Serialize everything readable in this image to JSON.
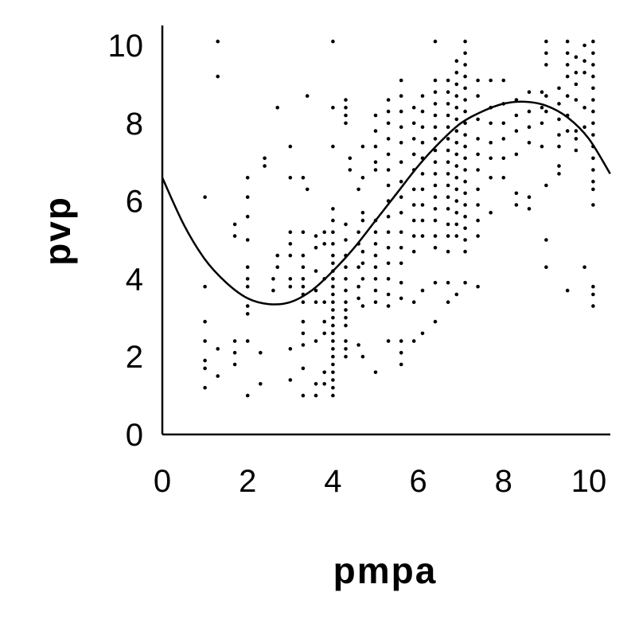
{
  "chart_data": {
    "type": "scatter",
    "xlabel": "pmpa",
    "ylabel": "pvp",
    "xlim": [
      0,
      10.5
    ],
    "ylim": [
      0,
      10.5
    ],
    "x_ticks": [
      "0",
      "2",
      "4",
      "6",
      "8",
      "10"
    ],
    "y_ticks": [
      "0",
      "2",
      "4",
      "6",
      "8",
      "10"
    ],
    "grid": false,
    "legend": "none",
    "point_color": "#000000",
    "points": [
      [
        1.0,
        6.1
      ],
      [
        1.0,
        3.8
      ],
      [
        1.0,
        2.9
      ],
      [
        1.0,
        2.4
      ],
      [
        1.0,
        1.9
      ],
      [
        1.0,
        1.7
      ],
      [
        1.0,
        1.2
      ],
      [
        1.3,
        10.1
      ],
      [
        1.3,
        9.2
      ],
      [
        1.3,
        2.2
      ],
      [
        1.3,
        1.5
      ],
      [
        1.7,
        5.4
      ],
      [
        1.7,
        5.1
      ],
      [
        1.7,
        2.4
      ],
      [
        1.7,
        2.1
      ],
      [
        1.7,
        1.8
      ],
      [
        2.0,
        6.6
      ],
      [
        2.0,
        6.1
      ],
      [
        2.0,
        5.6
      ],
      [
        2.0,
        5.0
      ],
      [
        2.0,
        4.3
      ],
      [
        2.0,
        4.0
      ],
      [
        2.0,
        3.8
      ],
      [
        2.0,
        3.3
      ],
      [
        2.0,
        3.1
      ],
      [
        2.0,
        2.4
      ],
      [
        2.0,
        1.0
      ],
      [
        2.3,
        2.1
      ],
      [
        2.3,
        1.3
      ],
      [
        2.4,
        7.1
      ],
      [
        2.4,
        6.9
      ],
      [
        2.6,
        4.0
      ],
      [
        2.6,
        3.7
      ],
      [
        2.7,
        8.4
      ],
      [
        2.7,
        4.6
      ],
      [
        2.7,
        4.3
      ],
      [
        3.0,
        7.4
      ],
      [
        3.0,
        6.6
      ],
      [
        3.0,
        5.2
      ],
      [
        3.0,
        4.9
      ],
      [
        3.0,
        4.6
      ],
      [
        3.0,
        4.0
      ],
      [
        3.0,
        3.8
      ],
      [
        3.0,
        2.2
      ],
      [
        3.0,
        1.4
      ],
      [
        3.3,
        6.6
      ],
      [
        3.3,
        5.2
      ],
      [
        3.3,
        4.6
      ],
      [
        3.3,
        4.3
      ],
      [
        3.3,
        4.0
      ],
      [
        3.3,
        3.8
      ],
      [
        3.3,
        3.6
      ],
      [
        3.3,
        3.4
      ],
      [
        3.3,
        2.9
      ],
      [
        3.3,
        2.6
      ],
      [
        3.3,
        2.3
      ],
      [
        3.3,
        1.7
      ],
      [
        3.3,
        1.0
      ],
      [
        3.4,
        8.7
      ],
      [
        3.4,
        6.3
      ],
      [
        3.6,
        5.1
      ],
      [
        3.6,
        4.8
      ],
      [
        3.6,
        4.2
      ],
      [
        3.6,
        3.7
      ],
      [
        3.6,
        3.4
      ],
      [
        3.6,
        2.4
      ],
      [
        3.6,
        1.3
      ],
      [
        3.6,
        1.0
      ],
      [
        3.8,
        5.2
      ],
      [
        3.8,
        4.9
      ],
      [
        3.8,
        4.0
      ],
      [
        3.8,
        3.4
      ],
      [
        3.8,
        2.9
      ],
      [
        3.8,
        2.6
      ],
      [
        3.8,
        1.6
      ],
      [
        3.8,
        1.3
      ],
      [
        4.0,
        10.1
      ],
      [
        4.0,
        8.4
      ],
      [
        4.0,
        7.4
      ],
      [
        4.0,
        5.8
      ],
      [
        4.0,
        5.5
      ],
      [
        4.0,
        5.2
      ],
      [
        4.0,
        4.9
      ],
      [
        4.0,
        4.6
      ],
      [
        4.0,
        4.4
      ],
      [
        4.0,
        4.2
      ],
      [
        4.0,
        4.0
      ],
      [
        4.0,
        3.8
      ],
      [
        4.0,
        3.6
      ],
      [
        4.0,
        3.4
      ],
      [
        4.0,
        3.2
      ],
      [
        4.0,
        3.0
      ],
      [
        4.0,
        2.8
      ],
      [
        4.0,
        2.6
      ],
      [
        4.0,
        2.4
      ],
      [
        4.0,
        2.2
      ],
      [
        4.0,
        2.0
      ],
      [
        4.0,
        1.8
      ],
      [
        4.0,
        1.6
      ],
      [
        4.0,
        1.4
      ],
      [
        4.0,
        1.2
      ],
      [
        4.0,
        1.0
      ],
      [
        4.3,
        8.6
      ],
      [
        4.3,
        8.4
      ],
      [
        4.3,
        8.2
      ],
      [
        4.3,
        8.0
      ],
      [
        4.3,
        5.4
      ],
      [
        4.3,
        5.0
      ],
      [
        4.3,
        4.6
      ],
      [
        4.3,
        4.3
      ],
      [
        4.3,
        4.0
      ],
      [
        4.3,
        3.7
      ],
      [
        4.3,
        3.4
      ],
      [
        4.3,
        3.2
      ],
      [
        4.3,
        3.0
      ],
      [
        4.3,
        2.8
      ],
      [
        4.3,
        2.4
      ],
      [
        4.3,
        2.2
      ],
      [
        4.3,
        2.0
      ],
      [
        4.4,
        7.1
      ],
      [
        4.4,
        6.8
      ],
      [
        4.6,
        6.3
      ],
      [
        4.6,
        5.2
      ],
      [
        4.6,
        4.9
      ],
      [
        4.6,
        4.3
      ],
      [
        4.6,
        3.8
      ],
      [
        4.6,
        3.5
      ],
      [
        4.6,
        2.3
      ],
      [
        4.7,
        7.4
      ],
      [
        4.7,
        6.6
      ],
      [
        4.7,
        5.7
      ],
      [
        4.7,
        5.5
      ],
      [
        4.7,
        4.7
      ],
      [
        4.7,
        4.4
      ],
      [
        4.7,
        4.0
      ],
      [
        4.7,
        3.3
      ],
      [
        4.7,
        2.0
      ],
      [
        5.0,
        8.2
      ],
      [
        5.0,
        7.8
      ],
      [
        5.0,
        7.4
      ],
      [
        5.0,
        7.0
      ],
      [
        5.0,
        6.8
      ],
      [
        5.0,
        5.5
      ],
      [
        5.0,
        5.2
      ],
      [
        5.0,
        4.9
      ],
      [
        5.0,
        4.6
      ],
      [
        5.0,
        4.3
      ],
      [
        5.0,
        4.0
      ],
      [
        5.0,
        3.7
      ],
      [
        5.0,
        3.4
      ],
      [
        5.0,
        1.6
      ],
      [
        5.3,
        8.6
      ],
      [
        5.3,
        8.3
      ],
      [
        5.3,
        8.0
      ],
      [
        5.3,
        7.6
      ],
      [
        5.3,
        7.2
      ],
      [
        5.3,
        6.8
      ],
      [
        5.3,
        6.4
      ],
      [
        5.3,
        6.0
      ],
      [
        5.3,
        5.6
      ],
      [
        5.3,
        5.2
      ],
      [
        5.3,
        4.8
      ],
      [
        5.3,
        4.4
      ],
      [
        5.3,
        4.0
      ],
      [
        5.3,
        3.6
      ],
      [
        5.3,
        3.3
      ],
      [
        5.3,
        2.4
      ],
      [
        5.6,
        9.1
      ],
      [
        5.6,
        8.7
      ],
      [
        5.6,
        8.3
      ],
      [
        5.6,
        7.9
      ],
      [
        5.6,
        7.5
      ],
      [
        5.6,
        7.0
      ],
      [
        5.6,
        6.5
      ],
      [
        5.6,
        6.1
      ],
      [
        5.6,
        5.7
      ],
      [
        5.6,
        5.2
      ],
      [
        5.6,
        4.8
      ],
      [
        5.6,
        4.4
      ],
      [
        5.6,
        3.9
      ],
      [
        5.6,
        3.5
      ],
      [
        5.6,
        2.4
      ],
      [
        5.6,
        2.1
      ],
      [
        5.6,
        1.8
      ],
      [
        5.9,
        8.4
      ],
      [
        5.9,
        8.0
      ],
      [
        5.9,
        7.6
      ],
      [
        5.9,
        7.2
      ],
      [
        5.9,
        6.8
      ],
      [
        5.9,
        6.3
      ],
      [
        5.9,
        5.9
      ],
      [
        5.9,
        5.5
      ],
      [
        5.9,
        5.1
      ],
      [
        5.9,
        4.7
      ],
      [
        5.9,
        3.4
      ],
      [
        5.9,
        2.4
      ],
      [
        6.1,
        8.7
      ],
      [
        6.1,
        8.3
      ],
      [
        6.1,
        7.9
      ],
      [
        6.1,
        7.5
      ],
      [
        6.1,
        7.1
      ],
      [
        6.1,
        6.7
      ],
      [
        6.1,
        6.3
      ],
      [
        6.1,
        5.9
      ],
      [
        6.1,
        5.5
      ],
      [
        6.1,
        5.1
      ],
      [
        6.1,
        3.7
      ],
      [
        6.1,
        2.6
      ],
      [
        6.4,
        10.1
      ],
      [
        6.4,
        9.1
      ],
      [
        6.4,
        8.8
      ],
      [
        6.4,
        8.5
      ],
      [
        6.4,
        8.2
      ],
      [
        6.4,
        7.9
      ],
      [
        6.4,
        7.6
      ],
      [
        6.4,
        7.3
      ],
      [
        6.4,
        7.0
      ],
      [
        6.4,
        6.7
      ],
      [
        6.4,
        6.4
      ],
      [
        6.4,
        6.1
      ],
      [
        6.4,
        5.8
      ],
      [
        6.4,
        5.5
      ],
      [
        6.4,
        5.1
      ],
      [
        6.4,
        4.8
      ],
      [
        6.4,
        3.9
      ],
      [
        6.4,
        2.9
      ],
      [
        6.7,
        9.1
      ],
      [
        6.7,
        8.8
      ],
      [
        6.7,
        8.5
      ],
      [
        6.7,
        8.2
      ],
      [
        6.7,
        7.9
      ],
      [
        6.7,
        7.6
      ],
      [
        6.7,
        7.3
      ],
      [
        6.7,
        7.0
      ],
      [
        6.7,
        6.7
      ],
      [
        6.7,
        6.4
      ],
      [
        6.7,
        6.1
      ],
      [
        6.7,
        5.8
      ],
      [
        6.7,
        5.4
      ],
      [
        6.7,
        5.1
      ],
      [
        6.7,
        4.7
      ],
      [
        6.7,
        3.9
      ],
      [
        6.7,
        3.4
      ],
      [
        6.9,
        9.6
      ],
      [
        6.9,
        9.3
      ],
      [
        6.9,
        9.0
      ],
      [
        6.9,
        8.7
      ],
      [
        6.9,
        8.4
      ],
      [
        6.9,
        8.1
      ],
      [
        6.9,
        7.8
      ],
      [
        6.9,
        7.5
      ],
      [
        6.9,
        7.2
      ],
      [
        6.9,
        6.9
      ],
      [
        6.9,
        6.6
      ],
      [
        6.9,
        6.3
      ],
      [
        6.9,
        6.0
      ],
      [
        6.9,
        5.7
      ],
      [
        6.9,
        5.4
      ],
      [
        6.9,
        5.1
      ],
      [
        6.9,
        3.6
      ],
      [
        7.1,
        10.1
      ],
      [
        7.1,
        9.8
      ],
      [
        7.1,
        9.5
      ],
      [
        7.1,
        9.2
      ],
      [
        7.1,
        8.9
      ],
      [
        7.1,
        8.6
      ],
      [
        7.1,
        8.3
      ],
      [
        7.1,
        8.0
      ],
      [
        7.1,
        7.7
      ],
      [
        7.1,
        7.4
      ],
      [
        7.1,
        7.1
      ],
      [
        7.1,
        6.8
      ],
      [
        7.1,
        6.5
      ],
      [
        7.1,
        6.2
      ],
      [
        7.1,
        5.9
      ],
      [
        7.1,
        5.6
      ],
      [
        7.1,
        5.3
      ],
      [
        7.1,
        5.0
      ],
      [
        7.1,
        4.7
      ],
      [
        7.1,
        3.9
      ],
      [
        7.4,
        9.1
      ],
      [
        7.4,
        8.7
      ],
      [
        7.4,
        8.1
      ],
      [
        7.4,
        7.6
      ],
      [
        7.4,
        7.2
      ],
      [
        7.4,
        6.8
      ],
      [
        7.4,
        6.3
      ],
      [
        7.4,
        5.9
      ],
      [
        7.4,
        5.5
      ],
      [
        7.4,
        5.1
      ],
      [
        7.4,
        3.8
      ],
      [
        7.7,
        9.1
      ],
      [
        7.7,
        8.4
      ],
      [
        7.7,
        8.0
      ],
      [
        7.7,
        7.5
      ],
      [
        7.7,
        7.1
      ],
      [
        7.7,
        6.6
      ],
      [
        7.7,
        5.7
      ],
      [
        8.0,
        9.1
      ],
      [
        8.0,
        8.5
      ],
      [
        8.0,
        8.0
      ],
      [
        8.0,
        7.6
      ],
      [
        8.0,
        7.1
      ],
      [
        8.0,
        6.6
      ],
      [
        8.3,
        8.6
      ],
      [
        8.3,
        8.2
      ],
      [
        8.3,
        7.8
      ],
      [
        8.3,
        7.2
      ],
      [
        8.3,
        6.2
      ],
      [
        8.3,
        5.9
      ],
      [
        8.6,
        8.8
      ],
      [
        8.6,
        8.3
      ],
      [
        8.6,
        7.9
      ],
      [
        8.6,
        7.5
      ],
      [
        8.6,
        6.1
      ],
      [
        8.6,
        5.8
      ],
      [
        8.9,
        8.8
      ],
      [
        8.9,
        8.4
      ],
      [
        8.9,
        8.0
      ],
      [
        8.9,
        7.4
      ],
      [
        9.0,
        10.1
      ],
      [
        9.0,
        9.8
      ],
      [
        9.0,
        9.5
      ],
      [
        9.0,
        8.7
      ],
      [
        9.0,
        8.3
      ],
      [
        9.0,
        6.4
      ],
      [
        9.0,
        5.0
      ],
      [
        9.0,
        4.3
      ],
      [
        9.3,
        8.9
      ],
      [
        9.3,
        8.5
      ],
      [
        9.3,
        8.1
      ],
      [
        9.3,
        7.7
      ],
      [
        9.3,
        7.4
      ],
      [
        9.3,
        6.9
      ],
      [
        9.3,
        6.7
      ],
      [
        9.5,
        10.1
      ],
      [
        9.5,
        9.8
      ],
      [
        9.5,
        9.5
      ],
      [
        9.5,
        9.2
      ],
      [
        9.5,
        8.7
      ],
      [
        9.5,
        8.2
      ],
      [
        9.5,
        7.8
      ],
      [
        9.5,
        3.7
      ],
      [
        9.7,
        9.7
      ],
      [
        9.7,
        9.3
      ],
      [
        9.7,
        9.0
      ],
      [
        9.7,
        8.6
      ],
      [
        9.7,
        7.8
      ],
      [
        9.7,
        7.6
      ],
      [
        9.7,
        7.3
      ],
      [
        9.9,
        10.0
      ],
      [
        9.9,
        9.6
      ],
      [
        9.9,
        9.3
      ],
      [
        9.9,
        8.4
      ],
      [
        9.9,
        7.9
      ],
      [
        9.9,
        4.3
      ],
      [
        10.1,
        10.1
      ],
      [
        10.1,
        9.8
      ],
      [
        10.1,
        9.5
      ],
      [
        10.1,
        9.2
      ],
      [
        10.1,
        8.9
      ],
      [
        10.1,
        8.6
      ],
      [
        10.1,
        8.3
      ],
      [
        10.1,
        8.0
      ],
      [
        10.1,
        7.7
      ],
      [
        10.1,
        7.4
      ],
      [
        10.1,
        7.1
      ],
      [
        10.1,
        6.8
      ],
      [
        10.1,
        6.5
      ],
      [
        10.1,
        6.3
      ],
      [
        10.1,
        5.9
      ],
      [
        10.1,
        3.8
      ],
      [
        10.1,
        3.6
      ],
      [
        10.1,
        3.3
      ]
    ],
    "fit_curve": {
      "x": [
        0,
        0.5,
        1,
        1.5,
        2,
        2.5,
        3,
        3.5,
        4,
        4.5,
        5,
        5.5,
        6,
        6.5,
        7,
        7.5,
        8,
        8.5,
        9,
        9.5,
        10,
        10.5
      ],
      "y": [
        6.6,
        5.4,
        4.5,
        3.9,
        3.5,
        3.35,
        3.4,
        3.7,
        4.2,
        4.8,
        5.5,
        6.2,
        6.9,
        7.5,
        8.0,
        8.3,
        8.5,
        8.55,
        8.45,
        8.15,
        7.6,
        6.7
      ]
    }
  }
}
